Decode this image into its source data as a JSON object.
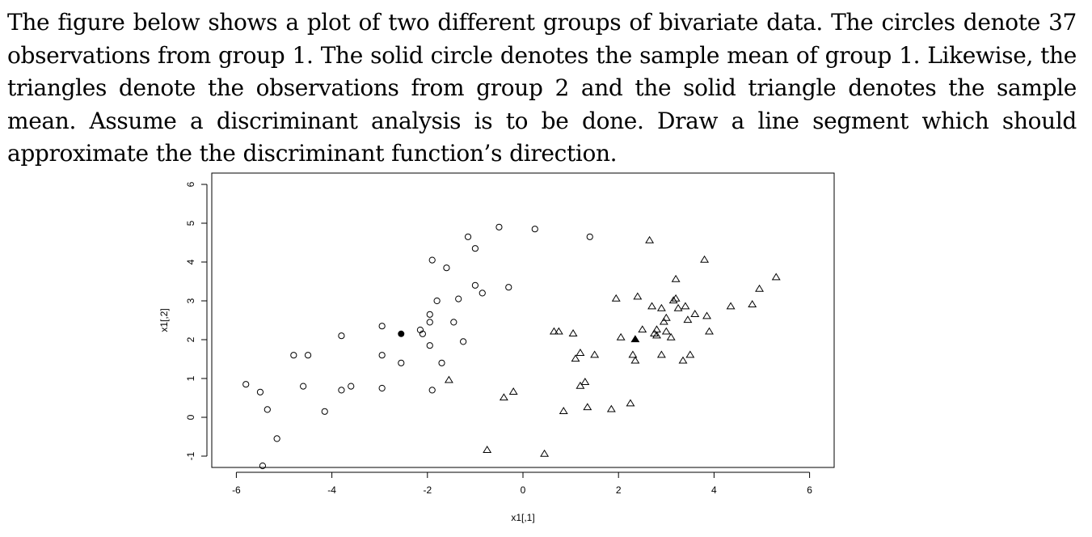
{
  "question": {
    "text": "The figure below shows a plot of two different groups of bivariate data. The circles denote 37 observations from group 1. The solid circle denotes the sample mean of group 1. Likewise, the triangles denote the observations from group 2 and the solid triangle denotes the sample mean. Assume a discriminant analysis is to be done. Draw a line segment which should approximate the the discriminant function’s direction."
  },
  "chart_data": {
    "type": "scatter",
    "title": "",
    "xlabel": "x1[,1]",
    "ylabel": "x1[,2]",
    "xlim": [
      -6.5,
      6.5
    ],
    "ylim": [
      -1.3,
      6.3
    ],
    "xticks": [
      -6,
      -4,
      -2,
      0,
      2,
      4,
      6
    ],
    "yticks": [
      -1,
      0,
      1,
      2,
      3,
      4,
      5,
      6
    ],
    "xtick_labels": [
      "-6",
      "-4",
      "-2",
      "0",
      "2",
      "4",
      "6"
    ],
    "ytick_labels": [
      "-1",
      "0",
      "1",
      "2",
      "3",
      "4",
      "5",
      "6"
    ],
    "grid": false,
    "legend": "none",
    "series": [
      {
        "marker": "circle-open",
        "points": [
          [
            -5.8,
            0.85
          ],
          [
            -5.5,
            0.65
          ],
          [
            -5.35,
            0.2
          ],
          [
            -5.15,
            -0.55
          ],
          [
            -5.45,
            -1.25
          ],
          [
            -4.8,
            1.6
          ],
          [
            -4.6,
            0.8
          ],
          [
            -4.5,
            1.6
          ],
          [
            -4.15,
            0.15
          ],
          [
            -3.8,
            2.1
          ],
          [
            -3.8,
            0.7
          ],
          [
            -3.6,
            0.8
          ],
          [
            -2.95,
            2.35
          ],
          [
            -2.95,
            1.6
          ],
          [
            -2.95,
            0.75
          ],
          [
            -2.55,
            1.4
          ],
          [
            -2.15,
            2.25
          ],
          [
            -2.1,
            2.15
          ],
          [
            -1.95,
            2.45
          ],
          [
            -1.95,
            2.65
          ],
          [
            -1.95,
            1.85
          ],
          [
            -1.9,
            4.05
          ],
          [
            -1.9,
            0.7
          ],
          [
            -1.8,
            3.0
          ],
          [
            -1.7,
            1.4
          ],
          [
            -1.6,
            3.85
          ],
          [
            -1.45,
            2.45
          ],
          [
            -1.35,
            3.05
          ],
          [
            -1.25,
            1.95
          ],
          [
            -1.15,
            4.65
          ],
          [
            -1.0,
            3.4
          ],
          [
            -1.0,
            4.35
          ],
          [
            -0.85,
            3.2
          ],
          [
            -0.5,
            4.9
          ],
          [
            -0.3,
            3.35
          ],
          [
            0.25,
            4.85
          ],
          [
            1.4,
            4.65
          ]
        ]
      },
      {
        "marker": "triangle-open",
        "points": [
          [
            -1.55,
            0.95
          ],
          [
            -0.75,
            -0.85
          ],
          [
            -0.4,
            0.5
          ],
          [
            -0.2,
            0.65
          ],
          [
            0.45,
            -0.95
          ],
          [
            0.65,
            2.2
          ],
          [
            0.75,
            2.2
          ],
          [
            0.85,
            0.15
          ],
          [
            1.05,
            2.15
          ],
          [
            1.1,
            1.5
          ],
          [
            1.2,
            1.65
          ],
          [
            1.2,
            0.8
          ],
          [
            1.3,
            0.9
          ],
          [
            1.35,
            0.25
          ],
          [
            1.5,
            1.6
          ],
          [
            1.85,
            0.2
          ],
          [
            1.95,
            3.05
          ],
          [
            2.05,
            2.05
          ],
          [
            2.25,
            0.35
          ],
          [
            2.3,
            1.6
          ],
          [
            2.35,
            1.45
          ],
          [
            2.4,
            3.1
          ],
          [
            2.5,
            2.25
          ],
          [
            2.65,
            4.55
          ],
          [
            2.7,
            2.85
          ],
          [
            2.75,
            2.15
          ],
          [
            2.8,
            2.25
          ],
          [
            2.8,
            2.1
          ],
          [
            2.9,
            2.8
          ],
          [
            2.9,
            1.6
          ],
          [
            2.95,
            2.45
          ],
          [
            3.0,
            2.55
          ],
          [
            3.0,
            2.2
          ],
          [
            3.1,
            2.05
          ],
          [
            3.15,
            3.0
          ],
          [
            3.2,
            3.55
          ],
          [
            3.2,
            3.05
          ],
          [
            3.25,
            2.8
          ],
          [
            3.35,
            1.45
          ],
          [
            3.4,
            2.85
          ],
          [
            3.45,
            2.5
          ],
          [
            3.5,
            1.6
          ],
          [
            3.6,
            2.65
          ],
          [
            3.8,
            4.05
          ],
          [
            3.85,
            2.6
          ],
          [
            3.9,
            2.2
          ],
          [
            4.35,
            2.85
          ],
          [
            4.8,
            2.9
          ],
          [
            4.95,
            3.3
          ],
          [
            5.3,
            3.6
          ]
        ]
      }
    ],
    "means": [
      {
        "marker": "circle-solid",
        "x": -2.55,
        "y": 2.15
      },
      {
        "marker": "triangle-solid",
        "x": 2.35,
        "y": 2.0
      }
    ]
  }
}
